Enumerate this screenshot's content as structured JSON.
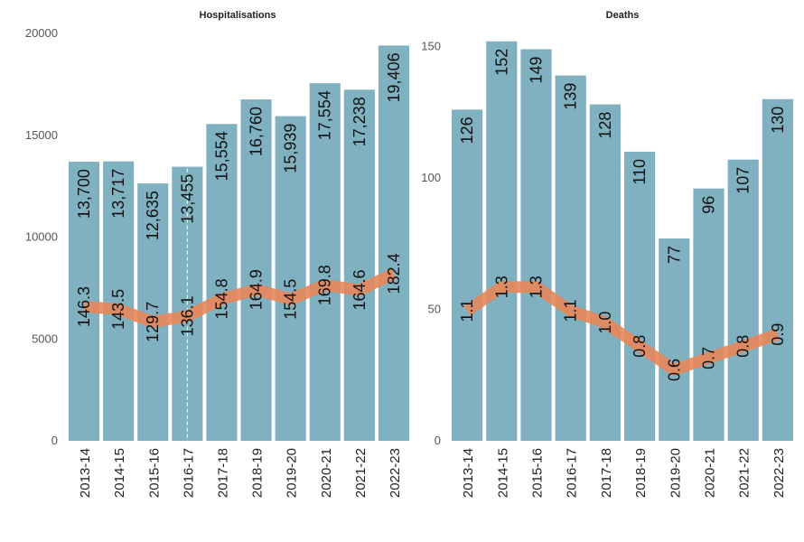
{
  "chart_data": [
    {
      "type": "bar",
      "title": "Hospitalisations",
      "categories": [
        "2013-14",
        "2014-15",
        "2015-16",
        "2016-17",
        "2017-18",
        "2018-19",
        "2019-20",
        "2020-21",
        "2021-22",
        "2022-23"
      ],
      "ylim": [
        0,
        20000
      ],
      "yticks": [
        0,
        5000,
        10000,
        15000,
        20000
      ],
      "ytick_labels": [
        "0",
        "5000",
        "10000",
        "15000",
        "20000"
      ],
      "series": [
        {
          "type": "bar",
          "values": [
            13700,
            13717,
            12635,
            13455,
            15554,
            16760,
            15939,
            17554,
            17238,
            19406
          ],
          "labels": [
            "13,700",
            "13,717",
            "12,635",
            "13,455",
            "15,554",
            "16,760",
            "15,939",
            "17,554",
            "17,238",
            "19,406"
          ],
          "color": "#80b1c0"
        },
        {
          "type": "line",
          "values": [
            146.3,
            143.5,
            129.7,
            136.1,
            154.8,
            164.9,
            154.5,
            169.8,
            164.6,
            182.4
          ],
          "labels": [
            "146.3",
            "143.5",
            "129.7",
            "136.1",
            "154.8",
            "164.9",
            "154.5",
            "169.8",
            "164.6",
            "182.4"
          ],
          "plot_scale": 45,
          "color": "#e8875a"
        }
      ],
      "grid": false
    },
    {
      "type": "bar",
      "title": "Deaths",
      "categories": [
        "2013-14",
        "2014-15",
        "2015-16",
        "2016-17",
        "2017-18",
        "2018-19",
        "2019-20",
        "2020-21",
        "2021-22",
        "2022-23"
      ],
      "ylim": [
        0,
        155
      ],
      "yticks": [
        0,
        50,
        100,
        150
      ],
      "ytick_labels": [
        "0",
        "50",
        "100",
        "150"
      ],
      "series": [
        {
          "type": "bar",
          "values": [
            126,
            152,
            149,
            139,
            128,
            110,
            77,
            96,
            107,
            130
          ],
          "labels": [
            "126",
            "152",
            "149",
            "139",
            "128",
            "110",
            "77",
            "96",
            "107",
            "130"
          ],
          "color": "#80b1c0"
        },
        {
          "type": "line",
          "values": [
            1.1,
            1.3,
            1.3,
            1.1,
            1.0,
            0.8,
            0.6,
            0.7,
            0.8,
            0.9
          ],
          "labels": [
            "1.1",
            "1.3",
            "1.3",
            "1.1",
            "1.0",
            "0.8",
            "0.6",
            "0.7",
            "0.8",
            "0.9"
          ],
          "plot_scale": 45,
          "color": "#e8875a"
        }
      ],
      "grid": false
    }
  ]
}
